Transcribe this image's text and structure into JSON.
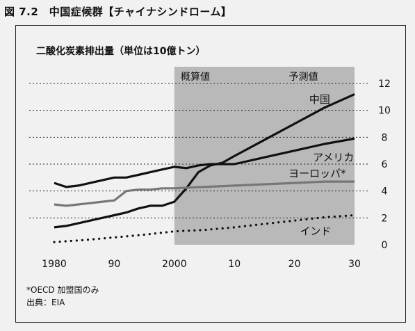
{
  "figure_title": "図 7.2　中国症候群【チャイナシンドローム】",
  "footnote": "*OECD 加盟国のみ",
  "source": "出典：EIA",
  "colors": {
    "background": "#f1f1f1",
    "shade": "#b9b9b9",
    "main_line": "#111111",
    "europe_line": "#777777"
  },
  "chart_data": {
    "type": "line",
    "title": "二酸化炭素排出量（単位は10億トン）",
    "x_tick_labels": [
      "1980",
      "90",
      "2000",
      "10",
      "20",
      "30"
    ],
    "x_ticks": [
      1980,
      1990,
      2000,
      2010,
      2020,
      2030
    ],
    "xlim": [
      1980,
      2030
    ],
    "y_ticks": [
      0,
      2,
      4,
      6,
      8,
      10,
      12
    ],
    "ylim": [
      0,
      12
    ],
    "grid": "dotted horizontal",
    "region_labels": [
      "概算値",
      "予測値"
    ],
    "shaded_region": [
      2000,
      2030
    ],
    "series": [
      {
        "name": "中国",
        "style": "solid-thick",
        "x": [
          1980,
          1982,
          1984,
          1986,
          1988,
          1990,
          1992,
          1994,
          1996,
          1998,
          2000,
          2002,
          2004,
          2006,
          2008,
          2010,
          2015,
          2020,
          2025,
          2030
        ],
        "y": [
          1.3,
          1.4,
          1.6,
          1.8,
          2.0,
          2.2,
          2.4,
          2.7,
          2.9,
          2.9,
          3.2,
          4.2,
          5.4,
          5.9,
          6.1,
          6.6,
          7.8,
          9.0,
          10.2,
          11.2
        ]
      },
      {
        "name": "アメリカ",
        "style": "solid-thick",
        "x": [
          1980,
          1982,
          1984,
          1986,
          1988,
          1990,
          1992,
          1994,
          1996,
          1998,
          2000,
          2002,
          2004,
          2006,
          2008,
          2010,
          2015,
          2020,
          2025,
          2030
        ],
        "y": [
          4.6,
          4.3,
          4.4,
          4.6,
          4.8,
          5.0,
          5.0,
          5.2,
          5.4,
          5.6,
          5.8,
          5.7,
          5.9,
          6.0,
          6.0,
          6.0,
          6.5,
          7.0,
          7.5,
          7.9
        ]
      },
      {
        "name": "ヨーロッパ*",
        "style": "solid-gray",
        "x": [
          1980,
          1982,
          1984,
          1986,
          1988,
          1990,
          1992,
          1994,
          1996,
          1998,
          2000,
          2005,
          2010,
          2015,
          2020,
          2025,
          2030
        ],
        "y": [
          3.0,
          2.9,
          3.0,
          3.1,
          3.2,
          3.3,
          4.0,
          4.1,
          4.1,
          4.2,
          4.2,
          4.3,
          4.4,
          4.5,
          4.6,
          4.7,
          4.7
        ]
      },
      {
        "name": "インド",
        "style": "dotted",
        "x": [
          1980,
          1985,
          1990,
          1995,
          2000,
          2005,
          2010,
          2015,
          2020,
          2025,
          2030
        ],
        "y": [
          0.2,
          0.35,
          0.55,
          0.75,
          1.0,
          1.1,
          1.3,
          1.55,
          1.8,
          2.05,
          2.2
        ]
      }
    ]
  }
}
